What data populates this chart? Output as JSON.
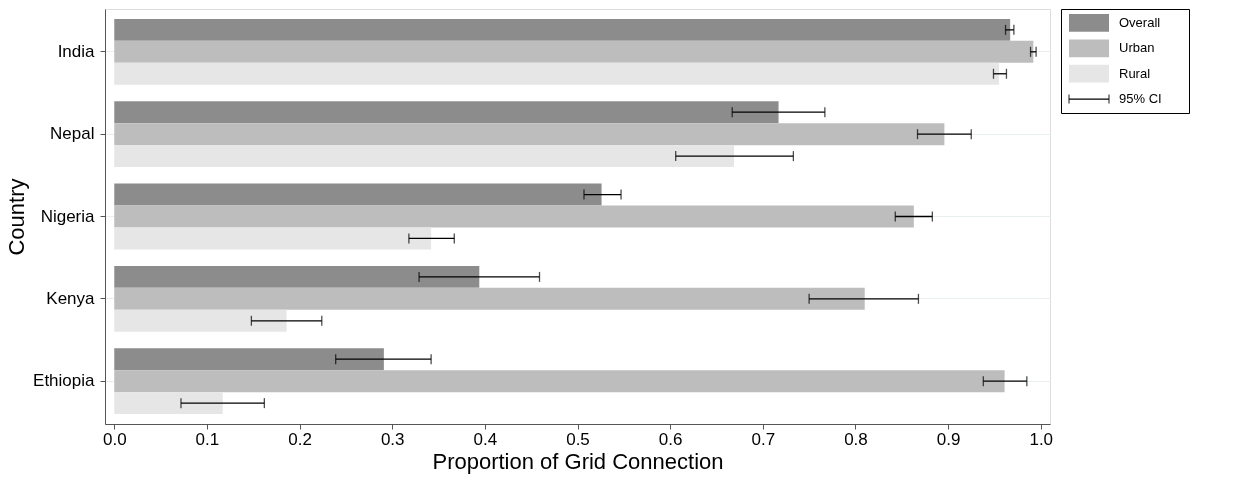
{
  "chart_data": {
    "type": "bar",
    "orientation": "horizontal",
    "xlabel": "Proportion of Grid Connection",
    "ylabel": "Country",
    "categories": [
      "India",
      "Nepal",
      "Nigeria",
      "Kenya",
      "Ethiopia"
    ],
    "series": [
      {
        "name": "Overall",
        "color": "#8c8c8c",
        "values": [
          0.967,
          0.717,
          0.526,
          0.394,
          0.291
        ],
        "errors": [
          [
            0.962,
            0.971
          ],
          [
            0.667,
            0.767
          ],
          [
            0.507,
            0.547
          ],
          [
            0.329,
            0.459
          ],
          [
            0.239,
            0.342
          ]
        ]
      },
      {
        "name": "Urban",
        "color": "#bdbdbd",
        "values": [
          0.992,
          0.896,
          0.863,
          0.81,
          0.961
        ],
        "errors": [
          [
            0.989,
            0.995
          ],
          [
            0.867,
            0.925
          ],
          [
            0.843,
            0.883
          ],
          [
            0.75,
            0.868
          ],
          [
            0.938,
            0.985
          ]
        ]
      },
      {
        "name": "Rural",
        "color": "#e6e6e6",
        "values": [
          0.955,
          0.669,
          0.342,
          0.186,
          0.117
        ],
        "errors": [
          [
            0.949,
            0.963
          ],
          [
            0.606,
            0.733
          ],
          [
            0.318,
            0.367
          ],
          [
            0.148,
            0.224
          ],
          [
            0.072,
            0.162
          ]
        ]
      }
    ],
    "xlim": [
      -0.01,
      1.01
    ],
    "xticks": [
      {
        "value": 0,
        "label": "0.0"
      },
      0.1,
      0.2,
      0.3,
      0.4,
      0.5,
      0.6,
      0.7,
      0.8,
      0.9,
      {
        "value": 1,
        "label": "1.0"
      }
    ],
    "grid": "y",
    "legend": "top right",
    "annotations": [
      "95% CI"
    ]
  }
}
